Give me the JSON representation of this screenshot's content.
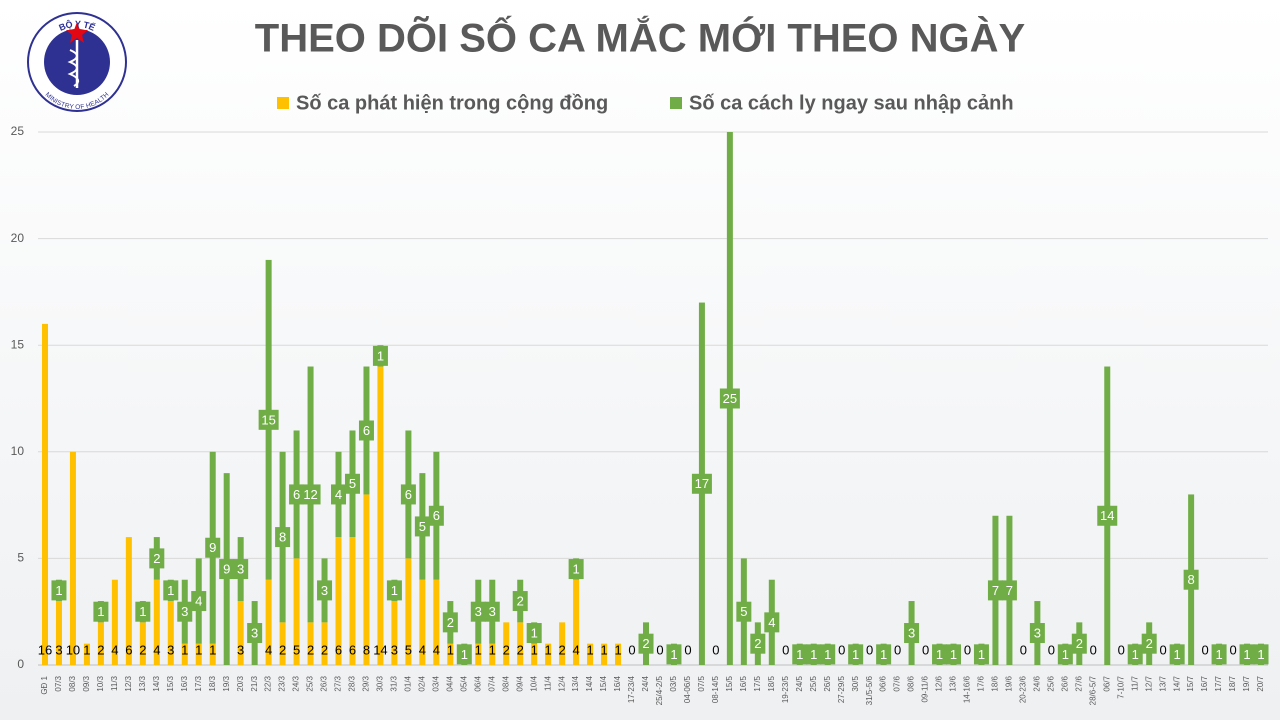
{
  "logo": {
    "top": "BỘ Y TẾ",
    "bottom": "MINISTRY OF HEALTH"
  },
  "chart_data": {
    "type": "stacked-bar",
    "title": "THEO DÕI SỐ CA MẮC MỚI THEO NGÀY",
    "categories": [
      "GĐ 1",
      "07/3",
      "08/3",
      "09/3",
      "10/3",
      "11/3",
      "12/3",
      "13/3",
      "14/3",
      "15/3",
      "16/3",
      "17/3",
      "18/3",
      "19/3",
      "20/3",
      "21/3",
      "22/3",
      "23/3",
      "24/3",
      "25/3",
      "26/3",
      "27/3",
      "28/3",
      "29/3",
      "30/3",
      "31/3",
      "01/4",
      "02/4",
      "03/4",
      "04/4",
      "05/4",
      "06/4",
      "07/4",
      "08/4",
      "09/4",
      "10/4",
      "11/4",
      "12/4",
      "13/4",
      "14/4",
      "15/4",
      "16/4",
      "17-23/4",
      "24/4",
      "25/4-2/5",
      "03/5",
      "04-06/5",
      "07/5",
      "08-14/5",
      "15/5",
      "16/5",
      "17/5",
      "18/5",
      "19-23/5",
      "24/5",
      "25/5",
      "26/5",
      "27-29/5",
      "30/5",
      "31/5-5/6",
      "06/6",
      "07/6",
      "08/6",
      "09-11/6",
      "12/6",
      "13/6",
      "14-16/6",
      "17/6",
      "18/6",
      "19/6",
      "20-23/6",
      "24/6",
      "25/6",
      "26/6",
      "27/6",
      "28/6-5/7",
      "06/7",
      "7-10/7",
      "11/7",
      "12/7",
      "13/7",
      "14/7",
      "15/7",
      "16/7",
      "17/7",
      "18/7",
      "19/7",
      "20/7"
    ],
    "series": [
      {
        "name": "Số ca phát hiện trong cộng đồng",
        "color": "#ffc000",
        "label_style": "bottom",
        "values": [
          16,
          3,
          10,
          1,
          2,
          4,
          6,
          2,
          4,
          3,
          1,
          1,
          1,
          null,
          3,
          null,
          4,
          2,
          5,
          2,
          2,
          6,
          6,
          8,
          14,
          3,
          5,
          4,
          4,
          1,
          null,
          1,
          1,
          2,
          2,
          1,
          1,
          2,
          4,
          1,
          1,
          1,
          0,
          null,
          0,
          null,
          0,
          null,
          0,
          null,
          null,
          null,
          null,
          0,
          null,
          null,
          null,
          0,
          null,
          0,
          null,
          0,
          null,
          0,
          null,
          null,
          0,
          null,
          null,
          null,
          0,
          null,
          0,
          null,
          null,
          0,
          null,
          0,
          null,
          null,
          0,
          null,
          null,
          0,
          null,
          0,
          null,
          null
        ]
      },
      {
        "name": "Số ca cách ly ngay sau nhập cảnh",
        "color": "#70ad47",
        "label_style": "boxed",
        "values": [
          null,
          1,
          null,
          null,
          1,
          null,
          null,
          1,
          2,
          1,
          3,
          4,
          9,
          9,
          3,
          3,
          15,
          8,
          6,
          12,
          3,
          4,
          5,
          6,
          1,
          1,
          6,
          5,
          6,
          2,
          1,
          3,
          3,
          null,
          2,
          1,
          null,
          null,
          1,
          null,
          null,
          null,
          null,
          2,
          null,
          1,
          null,
          17,
          null,
          25,
          5,
          2,
          4,
          null,
          1,
          1,
          1,
          null,
          1,
          null,
          1,
          null,
          3,
          null,
          1,
          1,
          null,
          1,
          7,
          7,
          null,
          3,
          null,
          1,
          2,
          null,
          14,
          null,
          1,
          2,
          null,
          1,
          8,
          null,
          1,
          null,
          1,
          1
        ]
      }
    ],
    "ylim": [
      0,
      25
    ],
    "yticks": [
      0,
      5,
      10,
      15,
      20,
      25
    ],
    "grid": true,
    "legend": "top"
  }
}
